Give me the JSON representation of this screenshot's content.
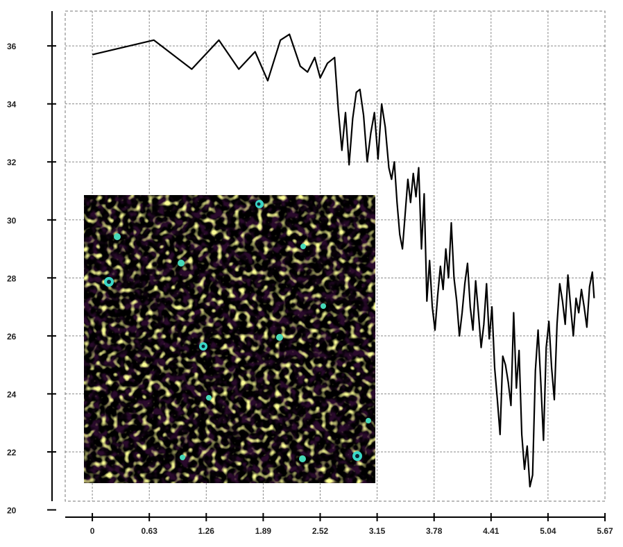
{
  "chart_data": {
    "type": "line",
    "title": "",
    "xlabel": "",
    "ylabel": "",
    "xlim": [
      -0.3,
      5.67
    ],
    "ylim": [
      20.3,
      37.2
    ],
    "grid": true,
    "grid_style": "dashed",
    "xticks": [
      "0",
      "0.63",
      "1.26",
      "1.89",
      "2.52",
      "3.15",
      "3.78",
      "4.41",
      "5.04",
      "5.67"
    ],
    "yticks": [
      "20",
      "22",
      "24",
      "26",
      "28",
      "30",
      "32",
      "34",
      "36"
    ],
    "line_color": "#000000",
    "series": [
      {
        "x": [
          0,
          0.68,
          1.1,
          1.4,
          1.62,
          1.8,
          1.94,
          2.08,
          2.18,
          2.3,
          2.38,
          2.46,
          2.52,
          2.6,
          2.68,
          2.72,
          2.76,
          2.8,
          2.84,
          2.88,
          2.92,
          2.96,
          3.0,
          3.04,
          3.08,
          3.12,
          3.16,
          3.2,
          3.24,
          3.28,
          3.31,
          3.34,
          3.37,
          3.4,
          3.43,
          3.46,
          3.49,
          3.52,
          3.55,
          3.58,
          3.61,
          3.64,
          3.67,
          3.7,
          3.73,
          3.76,
          3.79,
          3.82,
          3.85,
          3.88,
          3.91,
          3.94,
          3.97,
          4.0,
          4.03,
          4.06,
          4.09,
          4.12,
          4.15,
          4.18,
          4.21,
          4.24,
          4.27,
          4.3,
          4.33,
          4.36,
          4.39,
          4.42,
          4.45,
          4.48,
          4.51,
          4.54,
          4.57,
          4.6,
          4.63,
          4.66,
          4.69,
          4.72,
          4.75,
          4.78,
          4.81,
          4.84,
          4.87,
          4.9,
          4.93,
          4.96,
          4.99,
          5.02,
          5.05,
          5.08,
          5.11,
          5.14,
          5.17,
          5.2,
          5.23,
          5.26,
          5.29,
          5.32,
          5.35,
          5.38,
          5.41,
          5.44,
          5.47,
          5.5,
          5.53,
          5.55
        ],
        "y": [
          35.7,
          36.2,
          35.2,
          36.2,
          35.2,
          35.8,
          34.8,
          36.2,
          36.4,
          35.3,
          35.1,
          35.6,
          34.9,
          35.4,
          35.6,
          33.8,
          32.4,
          33.7,
          31.9,
          33.5,
          34.4,
          34.5,
          33.6,
          32.0,
          33.0,
          33.7,
          32.1,
          34.0,
          33.2,
          31.8,
          31.4,
          32.0,
          30.6,
          29.5,
          29.0,
          30.2,
          31.4,
          30.6,
          31.6,
          30.8,
          31.8,
          29.0,
          30.9,
          27.2,
          28.6,
          27.0,
          26.2,
          27.4,
          28.4,
          27.6,
          29.0,
          28.0,
          29.9,
          28.0,
          27.2,
          26.0,
          26.8,
          27.8,
          28.5,
          27.0,
          26.2,
          27.9,
          26.8,
          25.6,
          26.4,
          27.8,
          25.9,
          27.0,
          24.9,
          23.8,
          22.6,
          25.3,
          25.0,
          24.4,
          23.6,
          26.8,
          24.2,
          25.5,
          22.6,
          21.4,
          22.2,
          20.8,
          21.2,
          24.8,
          26.2,
          24.4,
          22.4,
          25.6,
          26.5,
          24.9,
          23.8,
          26.4,
          27.8,
          27.2,
          26.4,
          28.1,
          27.0,
          26.0,
          27.3,
          26.8,
          27.6,
          27.0,
          26.3,
          27.7,
          28.2,
          27.3
        ]
      }
    ]
  }
}
